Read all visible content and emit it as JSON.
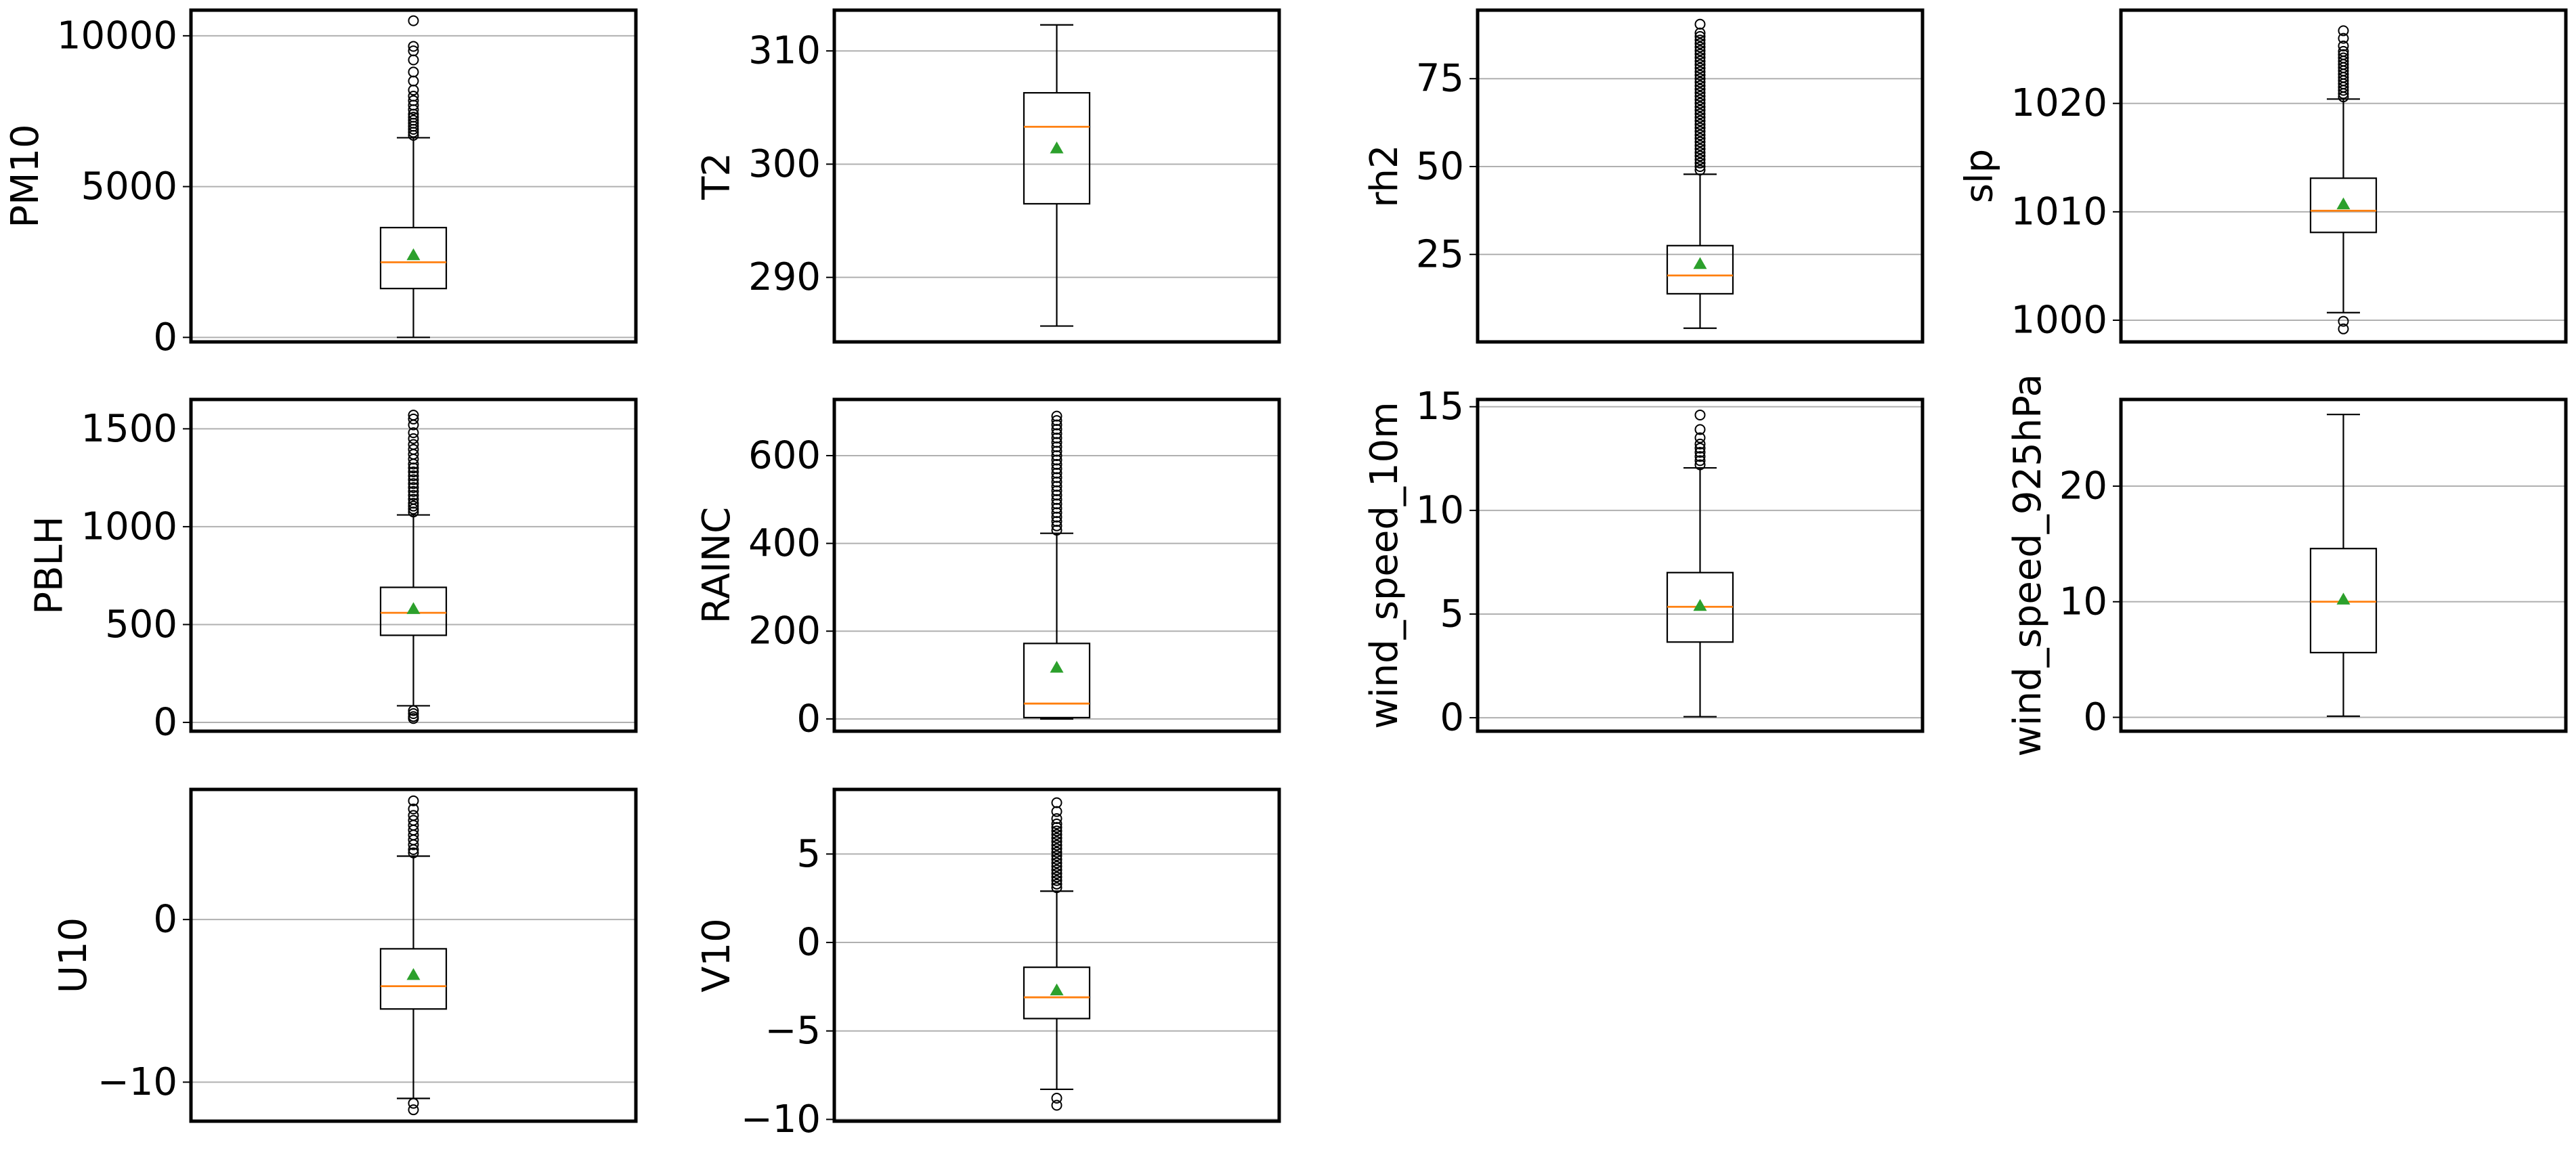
{
  "chart_data": [
    {
      "type": "box",
      "ylabel": "PM10",
      "yticks": [
        0,
        5000,
        10000
      ],
      "ytick_labels": [
        "0",
        "5000",
        "10000"
      ],
      "ylim": [
        -150,
        10850
      ],
      "grid": "horizontal",
      "stats": {
        "whisker_low": 0,
        "q1": 1620,
        "median": 2490,
        "q3": 3640,
        "whisker_high": 6620,
        "mean": 2730
      },
      "fliers": [
        6700,
        6800,
        6900,
        7000,
        7100,
        7200,
        7300,
        7400,
        7550,
        7700,
        7850,
        8000,
        8200,
        8500,
        8800,
        9200,
        9500,
        9650,
        10500
      ]
    },
    {
      "type": "box",
      "ylabel": "T2",
      "yticks": [
        290,
        300,
        310
      ],
      "ytick_labels": [
        "290",
        "300",
        "310"
      ],
      "ylim": [
        284.3,
        313.6
      ],
      "grid": "horizontal",
      "stats": {
        "whisker_low": 285.7,
        "q1": 296.5,
        "median": 303.3,
        "q3": 306.3,
        "whisker_high": 312.3,
        "mean": 301.4
      },
      "fliers": []
    },
    {
      "type": "box",
      "ylabel": "rh2",
      "yticks": [
        25,
        50,
        75
      ],
      "ytick_labels": [
        "25",
        "50",
        "75"
      ],
      "ylim": [
        0.1,
        94.5
      ],
      "grid": "horizontal",
      "stats": {
        "whisker_low": 4.0,
        "q1": 13.8,
        "median": 19.0,
        "q3": 27.5,
        "whisker_high": 47.8,
        "mean": 22.3
      },
      "fliers": [
        49,
        50,
        51,
        52,
        53,
        54,
        55,
        56,
        57,
        58,
        59,
        60,
        61,
        62,
        63,
        64,
        65,
        66,
        67,
        68,
        69,
        70,
        71,
        72,
        73,
        74,
        75,
        76,
        77,
        78,
        79,
        80,
        81,
        82,
        83,
        84,
        85,
        86,
        87,
        88,
        90.5
      ]
    },
    {
      "type": "box",
      "ylabel": "slp",
      "yticks": [
        1000,
        1010,
        1020
      ],
      "ytick_labels": [
        "1000",
        "1010",
        "1020"
      ],
      "ylim": [
        998.0,
        1028.6
      ],
      "grid": "horizontal",
      "stats": {
        "whisker_low": 1000.7,
        "q1": 1008.1,
        "median": 1010.1,
        "q3": 1013.1,
        "whisker_high": 1020.4,
        "mean": 1010.7
      },
      "fliers": [
        999.2,
        999.9,
        1020.6,
        1020.9,
        1021.2,
        1021.5,
        1021.8,
        1022.1,
        1022.4,
        1022.7,
        1023.0,
        1023.3,
        1023.6,
        1023.9,
        1024.2,
        1024.5,
        1024.8,
        1025.3,
        1026.0,
        1026.7
      ]
    },
    {
      "type": "box",
      "ylabel": "PBLH",
      "yticks": [
        0,
        500,
        1000,
        1500
      ],
      "ytick_labels": [
        "0",
        "500",
        "1000",
        "1500"
      ],
      "ylim": [
        -45,
        1650
      ],
      "grid": "horizontal",
      "stats": {
        "whisker_low": 85,
        "q1": 445,
        "median": 560,
        "q3": 690,
        "whisker_high": 1060,
        "mean": 580
      },
      "fliers": [
        20,
        30,
        45,
        60,
        1075,
        1090,
        1105,
        1120,
        1140,
        1160,
        1180,
        1200,
        1220,
        1240,
        1260,
        1280,
        1300,
        1320,
        1345,
        1370,
        1395,
        1420,
        1450,
        1480,
        1520,
        1550,
        1570
      ]
    },
    {
      "type": "box",
      "ylabel": "RAINC",
      "yticks": [
        0,
        200,
        400,
        600
      ],
      "ytick_labels": [
        "0",
        "200",
        "400",
        "600"
      ],
      "ylim": [
        -28,
        728
      ],
      "grid": "horizontal",
      "stats": {
        "whisker_low": 0,
        "q1": 3,
        "median": 35,
        "q3": 172,
        "whisker_high": 423,
        "mean": 117
      },
      "fliers": [
        430,
        440,
        450,
        460,
        470,
        480,
        490,
        500,
        510,
        520,
        530,
        540,
        550,
        560,
        570,
        580,
        590,
        600,
        610,
        620,
        630,
        640,
        650,
        660,
        670,
        680,
        690
      ]
    },
    {
      "type": "box",
      "ylabel": "wind_speed_10m",
      "yticks": [
        0,
        5,
        10,
        15
      ],
      "ytick_labels": [
        "0",
        "5",
        "10",
        "15"
      ],
      "ylim": [
        -0.65,
        15.35
      ],
      "grid": "horizontal",
      "stats": {
        "whisker_low": 0.05,
        "q1": 3.65,
        "median": 5.35,
        "q3": 7.0,
        "whisker_high": 12.05,
        "mean": 5.4
      },
      "fliers": [
        12.2,
        12.4,
        12.6,
        12.8,
        13.0,
        13.2,
        13.5,
        13.9,
        14.6
      ]
    },
    {
      "type": "box",
      "ylabel": "wind_speed_925hPa",
      "yticks": [
        0,
        10,
        20
      ],
      "ytick_labels": [
        "0",
        "10",
        "20"
      ],
      "ylim": [
        -1.2,
        27.5
      ],
      "grid": "horizontal",
      "stats": {
        "whisker_low": 0.1,
        "q1": 5.6,
        "median": 10.0,
        "q3": 14.6,
        "whisker_high": 26.2,
        "mean": 10.2
      },
      "fliers": []
    },
    {
      "type": "box",
      "ylabel": "U10",
      "yticks": [
        -10,
        0
      ],
      "ytick_labels": [
        "−10",
        "0"
      ],
      "ylim": [
        -12.4,
        8.0
      ],
      "grid": "horizontal",
      "stats": {
        "whisker_low": -11.0,
        "q1": -5.5,
        "median": -4.1,
        "q3": -1.8,
        "whisker_high": 3.9,
        "mean": -3.4
      },
      "fliers": [
        -11.7,
        -11.3,
        4.1,
        4.3,
        4.6,
        4.9,
        5.2,
        5.5,
        5.8,
        6.1,
        6.4,
        6.8,
        7.3
      ]
    },
    {
      "type": "box",
      "ylabel": "V10",
      "yticks": [
        -10,
        -5,
        0,
        5
      ],
      "ytick_labels": [
        "−10",
        "−5",
        "0",
        "5"
      ],
      "ylim": [
        -10.1,
        8.65
      ],
      "grid": "horizontal",
      "stats": {
        "whisker_low": -8.3,
        "q1": -4.3,
        "median": -3.1,
        "q3": -1.4,
        "whisker_high": 2.9,
        "mean": -2.7
      },
      "fliers": [
        -9.2,
        -8.8,
        3.1,
        3.3,
        3.5,
        3.7,
        3.9,
        4.1,
        4.3,
        4.5,
        4.7,
        4.9,
        5.1,
        5.3,
        5.5,
        5.7,
        5.9,
        6.1,
        6.3,
        6.5,
        6.7,
        7.0,
        7.4,
        7.9
      ]
    }
  ]
}
